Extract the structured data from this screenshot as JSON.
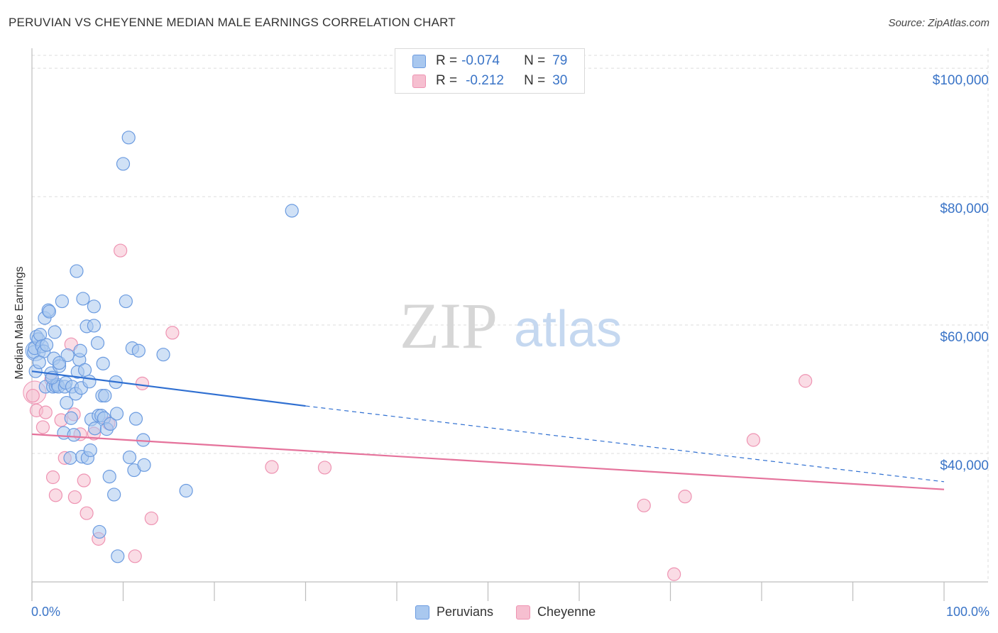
{
  "header": {
    "title": "PERUVIAN VS CHEYENNE MEDIAN MALE EARNINGS CORRELATION CHART",
    "source": "Source: ZipAtlas.com"
  },
  "watermark": {
    "part1": "ZIP",
    "part2": "atlas"
  },
  "legend": {
    "rows": [
      {
        "r_label": "R =",
        "r_value": "-0.074",
        "n_label": "N =",
        "n_value": "79"
      },
      {
        "r_label": "R =",
        "r_value": "-0.212",
        "n_label": "N =",
        "n_value": "30"
      }
    ]
  },
  "bottom_legend": {
    "series1": "Peruvians",
    "series2": "Cheyenne"
  },
  "x_axis": {
    "min_label": "0.0%",
    "max_label": "100.0%"
  },
  "colors": {
    "blue_fill": "#a9c8ef",
    "blue_stroke": "#6b9be0",
    "blue_line": "#2f6fd1",
    "pink_fill": "#f6bfd0",
    "pink_stroke": "#ee93b2",
    "pink_line": "#e5729b",
    "axis_text": "#3a74c7"
  },
  "chart_data": {
    "type": "scatter",
    "title": "PERUVIAN VS CHEYENNE MEDIAN MALE EARNINGS CORRELATION CHART",
    "xlabel": "",
    "ylabel": "Median Male Earnings",
    "xlim": [
      0,
      100
    ],
    "ylim": [
      20000,
      102000
    ],
    "y_ticks": [
      {
        "value": 100000,
        "label": "$100,000"
      },
      {
        "value": 80000,
        "label": "$80,000"
      },
      {
        "value": 60000,
        "label": "$60,000"
      },
      {
        "value": 40000,
        "label": "$40,000"
      }
    ],
    "x_tick_values": [
      0,
      10,
      20,
      30,
      40,
      50,
      60,
      70,
      80,
      90,
      100
    ],
    "series": [
      {
        "name": "Peruvians",
        "r": -0.074,
        "n": 79,
        "trend": {
          "x0": 0,
          "y0": 52800,
          "x_solid_end": 30,
          "y_solid_end": 47400,
          "x1": 100,
          "y1": 35600
        },
        "points": [
          [
            0.2,
            55800
          ],
          [
            0.3,
            56400
          ],
          [
            0.5,
            58200
          ],
          [
            0.7,
            57800
          ],
          [
            0.9,
            58500
          ],
          [
            1.1,
            56700
          ],
          [
            1.3,
            55900
          ],
          [
            1.4,
            61100
          ],
          [
            1.5,
            50400
          ],
          [
            1.6,
            56900
          ],
          [
            1.8,
            62300
          ],
          [
            1.9,
            62100
          ],
          [
            2.1,
            52500
          ],
          [
            2.3,
            50400
          ],
          [
            2.4,
            54800
          ],
          [
            2.5,
            58900
          ],
          [
            2.6,
            50500
          ],
          [
            2.8,
            50700
          ],
          [
            2.9,
            50400
          ],
          [
            3.0,
            53600
          ],
          [
            3.0,
            54100
          ],
          [
            3.3,
            63700
          ],
          [
            3.5,
            43200
          ],
          [
            3.6,
            50400
          ],
          [
            3.7,
            51000
          ],
          [
            3.8,
            47900
          ],
          [
            3.9,
            55300
          ],
          [
            4.2,
            39300
          ],
          [
            4.3,
            45500
          ],
          [
            4.4,
            50400
          ],
          [
            4.6,
            42900
          ],
          [
            4.8,
            49300
          ],
          [
            4.9,
            68400
          ],
          [
            5.0,
            52700
          ],
          [
            5.2,
            54600
          ],
          [
            5.3,
            56000
          ],
          [
            5.4,
            50200
          ],
          [
            5.5,
            39500
          ],
          [
            5.6,
            64100
          ],
          [
            5.8,
            53000
          ],
          [
            6.0,
            59800
          ],
          [
            6.1,
            39300
          ],
          [
            6.3,
            51200
          ],
          [
            6.4,
            40500
          ],
          [
            6.5,
            45300
          ],
          [
            6.8,
            59900
          ],
          [
            6.8,
            62900
          ],
          [
            6.9,
            43900
          ],
          [
            7.2,
            57200
          ],
          [
            7.3,
            45900
          ],
          [
            7.4,
            27800
          ],
          [
            7.6,
            45900
          ],
          [
            7.7,
            49000
          ],
          [
            7.8,
            54000
          ],
          [
            7.9,
            45500
          ],
          [
            8.0,
            49000
          ],
          [
            8.2,
            43800
          ],
          [
            8.5,
            36400
          ],
          [
            8.6,
            44600
          ],
          [
            9.0,
            33600
          ],
          [
            9.2,
            51100
          ],
          [
            9.3,
            46200
          ],
          [
            9.4,
            24000
          ],
          [
            10.0,
            85100
          ],
          [
            10.3,
            63700
          ],
          [
            10.6,
            89200
          ],
          [
            10.7,
            39400
          ],
          [
            11.0,
            56400
          ],
          [
            11.2,
            37400
          ],
          [
            11.4,
            45400
          ],
          [
            11.7,
            56000
          ],
          [
            12.2,
            42100
          ],
          [
            12.3,
            38200
          ],
          [
            14.4,
            55400
          ],
          [
            16.9,
            34200
          ],
          [
            28.5,
            77800
          ],
          [
            0.4,
            52800
          ],
          [
            0.8,
            54200
          ],
          [
            2.2,
            51800
          ]
        ]
      },
      {
        "name": "Cheyenne",
        "r": -0.212,
        "n": 30,
        "trend": {
          "x0": 0,
          "y0": 43000,
          "x1": 100,
          "y1": 34400
        },
        "points": [
          [
            0.1,
            49000
          ],
          [
            0.5,
            46700
          ],
          [
            1.2,
            44100
          ],
          [
            1.5,
            46400
          ],
          [
            2.1,
            51500
          ],
          [
            2.3,
            36300
          ],
          [
            2.6,
            33500
          ],
          [
            3.2,
            45200
          ],
          [
            3.6,
            39300
          ],
          [
            4.3,
            57000
          ],
          [
            4.6,
            46100
          ],
          [
            4.7,
            33200
          ],
          [
            5.3,
            43000
          ],
          [
            5.7,
            35800
          ],
          [
            6.0,
            30700
          ],
          [
            6.8,
            43100
          ],
          [
            7.3,
            26700
          ],
          [
            8.4,
            44700
          ],
          [
            9.7,
            71600
          ],
          [
            11.3,
            24000
          ],
          [
            12.1,
            50900
          ],
          [
            13.1,
            29900
          ],
          [
            15.4,
            58800
          ],
          [
            26.3,
            37900
          ],
          [
            32.1,
            37800
          ],
          [
            67.1,
            31900
          ],
          [
            70.4,
            21200
          ],
          [
            71.6,
            33300
          ],
          [
            79.1,
            42100
          ],
          [
            84.8,
            51300
          ]
        ]
      }
    ]
  }
}
